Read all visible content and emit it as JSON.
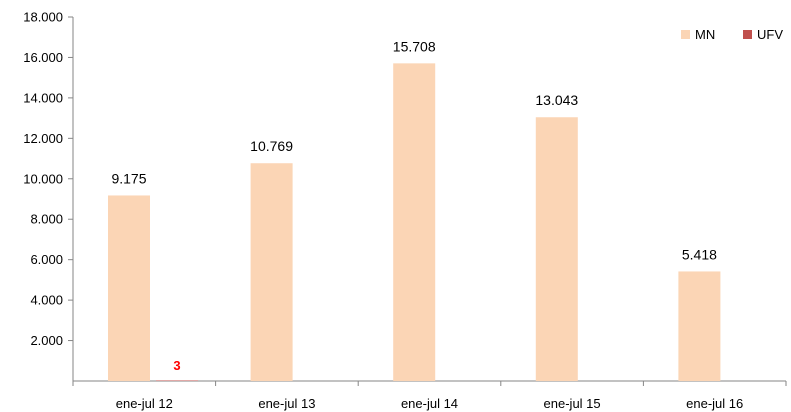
{
  "chart_data": {
    "type": "bar",
    "title": "",
    "xlabel": "",
    "ylabel": "",
    "categories": [
      "ene-jul 12",
      "ene-jul 13",
      "ene-jul 14",
      "ene-jul 15",
      "ene-jul 16"
    ],
    "series": [
      {
        "name": "MN",
        "values": [
          9175,
          10769,
          15708,
          13043,
          5418
        ],
        "labels": [
          "9.175",
          "10.769",
          "15.708",
          "13.043",
          "5.418"
        ],
        "color": "#FBD5B5"
      },
      {
        "name": "UFV",
        "values": [
          3,
          null,
          null,
          null,
          null
        ],
        "labels": [
          "3",
          "",
          "",
          "",
          ""
        ],
        "color": "#C0504D",
        "label_color": "#FF0000"
      }
    ],
    "ylim": [
      0,
      18000
    ],
    "yticks": [
      2000,
      4000,
      6000,
      8000,
      10000,
      12000,
      14000,
      16000,
      18000
    ],
    "ytick_labels": [
      "2.000",
      "4.000",
      "6.000",
      "8.000",
      "10.000",
      "12.000",
      "14.000",
      "16.000",
      "18.000"
    ],
    "grid": false,
    "legend_position": "top-right"
  }
}
